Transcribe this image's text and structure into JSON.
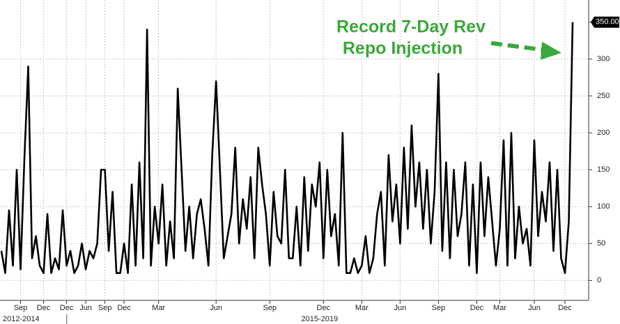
{
  "chart_data": {
    "type": "line",
    "annotation": [
      "Record 7-Day Rev",
      "Repo Injection"
    ],
    "categories": [
      null,
      null,
      null,
      null,
      null,
      "Sep",
      null,
      null,
      null,
      null,
      null,
      "Dec",
      null,
      null,
      null,
      null,
      null,
      "Dec",
      null,
      null,
      null,
      null,
      "Jun",
      null,
      null,
      null,
      null,
      "Sep",
      null,
      null,
      null,
      null,
      "Dec",
      null,
      null,
      null,
      null,
      null,
      null,
      null,
      null,
      "Mar",
      null,
      null,
      null,
      null,
      null,
      null,
      null,
      null,
      null,
      null,
      null,
      null,
      null,
      null,
      "Jun",
      null,
      null,
      null,
      null,
      null,
      null,
      null,
      null,
      null,
      null,
      null,
      null,
      null,
      "Sep",
      null,
      null,
      null,
      null,
      null,
      null,
      null,
      null,
      null,
      null,
      null,
      null,
      null,
      "Dec",
      null,
      null,
      null,
      null,
      null,
      null,
      null,
      null,
      null,
      "Mar",
      null,
      null,
      null,
      null,
      null,
      null,
      null,
      null,
      null,
      "Jun",
      null,
      null,
      null,
      null,
      null,
      null,
      null,
      null,
      null,
      "Sep",
      null,
      null,
      null,
      null,
      null,
      null,
      null,
      null,
      null,
      "Dec",
      null,
      null,
      null,
      null,
      null,
      "Mar",
      null,
      null,
      null,
      null,
      null,
      null,
      null,
      null,
      "Jun",
      null,
      null,
      null,
      null,
      null,
      null,
      null,
      "Dec",
      null,
      null
    ],
    "x_groups": [
      {
        "label": "2012-2014",
        "start": 0,
        "end": 16
      },
      {
        "label": "2015-2019",
        "start": 17,
        "end": 149
      }
    ],
    "values": [
      40,
      10,
      95,
      20,
      150,
      15,
      165,
      290,
      30,
      60,
      20,
      10,
      90,
      10,
      30,
      15,
      95,
      20,
      40,
      10,
      20,
      50,
      15,
      40,
      30,
      50,
      150,
      150,
      40,
      120,
      10,
      10,
      50,
      10,
      130,
      20,
      160,
      30,
      340,
      20,
      100,
      50,
      130,
      20,
      80,
      30,
      260,
      150,
      40,
      100,
      30,
      90,
      110,
      70,
      20,
      170,
      270,
      150,
      30,
      60,
      90,
      180,
      50,
      110,
      70,
      140,
      30,
      180,
      130,
      90,
      20,
      120,
      60,
      50,
      150,
      30,
      30,
      100,
      20,
      140,
      40,
      130,
      100,
      160,
      30,
      150,
      60,
      90,
      20,
      200,
      10,
      10,
      30,
      10,
      20,
      60,
      10,
      30,
      90,
      120,
      20,
      170,
      80,
      130,
      50,
      180,
      70,
      210,
      100,
      160,
      70,
      150,
      50,
      120,
      280,
      40,
      160,
      30,
      150,
      60,
      90,
      160,
      20,
      130,
      10,
      160,
      60,
      140,
      80,
      20,
      70,
      190,
      20,
      200,
      30,
      100,
      50,
      70,
      20,
      190,
      60,
      120,
      80,
      160,
      40,
      150,
      30,
      10,
      80,
      350
    ],
    "color": "#000000",
    "ylim": [
      -27,
      380
    ],
    "yticks": [
      0,
      50,
      100,
      150,
      200,
      250,
      300,
      {
        "value": 350,
        "label": "350.00"
      }
    ],
    "grid": true
  }
}
